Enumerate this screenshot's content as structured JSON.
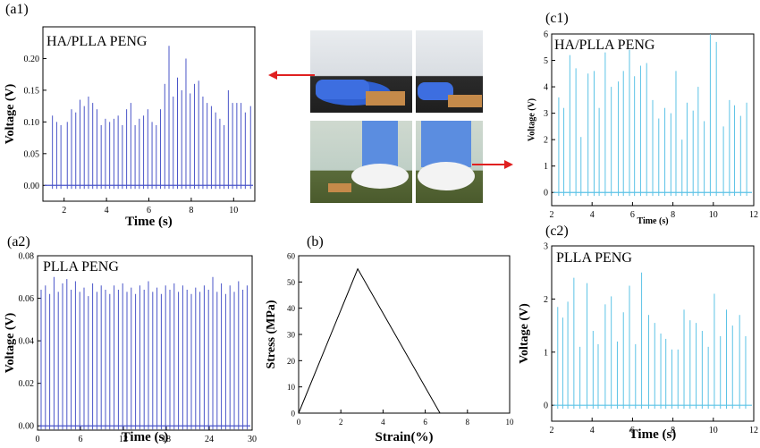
{
  "panels": {
    "a1": {
      "label": "(a1)",
      "annotation": "HA/PLLA PENG"
    },
    "a2": {
      "label": "(a2)",
      "annotation": "PLLA PENG"
    },
    "b": {
      "label": "(b)"
    },
    "c1": {
      "label": "(c1)",
      "annotation": "HA/PLLA PENG"
    },
    "c2": {
      "label": "(c2)",
      "annotation": "PLLA PENG"
    }
  },
  "colors": {
    "signal_dark": "#4a55c8",
    "signal_light": "#5cc3e6",
    "arrow": "#e02020",
    "line": "#000000"
  },
  "chart_data": [
    {
      "id": "a1",
      "type": "line",
      "xlabel": "Time (s)",
      "ylabel": "Voltage (V)",
      "xlim": [
        1,
        11
      ],
      "ylim": [
        -0.025,
        0.25
      ],
      "xticks": [
        2,
        4,
        6,
        8,
        10
      ],
      "yticks": [
        0.0,
        0.05,
        0.1,
        0.15,
        0.2
      ],
      "ytick_labels": [
        "0.00",
        "0.05",
        "0.10",
        "0.15",
        "0.20"
      ],
      "color": "#4a55c8",
      "series": [
        {
          "x": [
            1.45,
            1.65,
            1.85,
            2.15,
            2.35,
            2.55,
            2.75,
            2.95,
            3.15,
            3.35,
            3.55,
            3.75,
            3.95,
            4.15,
            4.35,
            4.55,
            4.75,
            4.95,
            5.15,
            5.35,
            5.55,
            5.75,
            5.95,
            6.15,
            6.35,
            6.55,
            6.75,
            6.95,
            7.15,
            7.35,
            7.55,
            7.75,
            7.95,
            8.15,
            8.35,
            8.55,
            8.75,
            8.95,
            9.15,
            9.35,
            9.55,
            9.75,
            9.95,
            10.15,
            10.35,
            10.55,
            10.8
          ],
          "y": [
            0.11,
            0.1,
            0.095,
            0.1,
            0.12,
            0.115,
            0.135,
            0.125,
            0.14,
            0.13,
            0.12,
            0.095,
            0.105,
            0.1,
            0.105,
            0.11,
            0.095,
            0.12,
            0.13,
            0.095,
            0.105,
            0.11,
            0.12,
            0.1,
            0.095,
            0.12,
            0.16,
            0.22,
            0.14,
            0.17,
            0.15,
            0.2,
            0.145,
            0.16,
            0.165,
            0.14,
            0.13,
            0.125,
            0.115,
            0.105,
            0.095,
            0.15,
            0.13,
            0.13,
            0.13,
            0.115,
            0.125
          ]
        }
      ]
    },
    {
      "id": "a2",
      "type": "line",
      "xlabel": "Time (s)",
      "ylabel": "Voltage (V)",
      "xlim": [
        0,
        30
      ],
      "ylim": [
        -0.002,
        0.08
      ],
      "xticks": [
        0,
        6,
        12,
        18,
        24,
        30
      ],
      "yticks": [
        0.0,
        0.02,
        0.04,
        0.06,
        0.08
      ],
      "ytick_labels": [
        "0.00",
        "0.02",
        "0.04",
        "0.06",
        "0.08"
      ],
      "color": "#4a55c8",
      "series": [
        {
          "x": [
            0.5,
            1.1,
            1.7,
            2.3,
            2.9,
            3.5,
            4.1,
            4.7,
            5.3,
            5.9,
            6.5,
            7.1,
            7.7,
            8.3,
            8.9,
            9.5,
            10.1,
            10.7,
            11.3,
            11.9,
            12.5,
            13.1,
            13.7,
            14.3,
            14.9,
            15.5,
            16.1,
            16.7,
            17.3,
            17.9,
            18.5,
            19.1,
            19.7,
            20.3,
            20.9,
            21.5,
            22.1,
            22.7,
            23.3,
            23.9,
            24.5,
            25.1,
            25.7,
            26.3,
            26.9,
            27.5,
            28.1,
            28.7,
            29.3
          ],
          "y": [
            0.064,
            0.066,
            0.062,
            0.07,
            0.063,
            0.067,
            0.069,
            0.064,
            0.068,
            0.063,
            0.065,
            0.061,
            0.067,
            0.063,
            0.066,
            0.064,
            0.062,
            0.066,
            0.064,
            0.067,
            0.063,
            0.065,
            0.062,
            0.066,
            0.064,
            0.068,
            0.063,
            0.065,
            0.062,
            0.066,
            0.064,
            0.067,
            0.063,
            0.066,
            0.064,
            0.062,
            0.065,
            0.063,
            0.066,
            0.064,
            0.07,
            0.063,
            0.067,
            0.062,
            0.066,
            0.063,
            0.068,
            0.064,
            0.066
          ]
        }
      ]
    },
    {
      "id": "b",
      "type": "line",
      "xlabel": "Strain(%)",
      "ylabel": "Stress (MPa)",
      "xlim": [
        0,
        10
      ],
      "ylim": [
        0,
        60
      ],
      "xticks": [
        0,
        2,
        4,
        6,
        8,
        10
      ],
      "yticks": [
        0,
        10,
        20,
        30,
        40,
        50,
        60
      ],
      "color": "#000000",
      "series": [
        {
          "x": [
            0,
            2.8,
            6.7
          ],
          "y": [
            0,
            55,
            0
          ]
        }
      ]
    },
    {
      "id": "c1",
      "type": "line",
      "xlabel": "Time (s)",
      "ylabel": "Voltage (V)",
      "xlim": [
        2,
        12
      ],
      "ylim": [
        -0.5,
        6
      ],
      "xticks": [
        2,
        4,
        6,
        8,
        10,
        12
      ],
      "yticks": [
        0,
        1,
        2,
        3,
        4,
        5,
        6
      ],
      "color": "#5cc3e6",
      "series": [
        {
          "x": [
            2.35,
            2.6,
            2.9,
            3.2,
            3.45,
            3.8,
            4.1,
            4.35,
            4.65,
            4.95,
            5.3,
            5.55,
            5.85,
            6.1,
            6.4,
            6.7,
            7.0,
            7.3,
            7.6,
            7.9,
            8.15,
            8.45,
            8.7,
            9.0,
            9.25,
            9.55,
            9.85,
            10.15,
            10.5,
            10.8,
            11.05,
            11.35,
            11.65
          ],
          "y": [
            3.6,
            3.2,
            5.2,
            4.7,
            2.1,
            4.5,
            4.6,
            3.2,
            5.3,
            4.0,
            4.2,
            4.6,
            5.4,
            4.4,
            4.8,
            4.9,
            3.5,
            2.8,
            3.2,
            3.0,
            4.6,
            2.0,
            3.4,
            3.1,
            4.0,
            2.7,
            6.0,
            5.7,
            2.5,
            3.5,
            3.3,
            2.9,
            3.4
          ]
        }
      ]
    },
    {
      "id": "c2",
      "type": "line",
      "xlabel": "Time (s)",
      "ylabel": "Voltage (V)",
      "xlim": [
        2,
        12
      ],
      "ylim": [
        -0.3,
        3
      ],
      "xticks": [
        2,
        4,
        6,
        8,
        10,
        12
      ],
      "yticks": [
        0,
        1,
        2,
        3
      ],
      "color": "#5cc3e6",
      "series": [
        {
          "x": [
            2.3,
            2.55,
            2.8,
            3.1,
            3.4,
            3.75,
            4.05,
            4.3,
            4.65,
            4.95,
            5.25,
            5.55,
            5.85,
            6.15,
            6.45,
            6.8,
            7.1,
            7.4,
            7.65,
            7.95,
            8.25,
            8.55,
            8.85,
            9.15,
            9.45,
            9.75,
            10.05,
            10.35,
            10.65,
            10.95,
            11.3,
            11.6
          ],
          "y": [
            1.85,
            1.65,
            1.95,
            2.4,
            1.1,
            2.3,
            1.4,
            1.15,
            1.9,
            2.05,
            1.2,
            1.75,
            2.25,
            1.15,
            2.5,
            1.7,
            1.55,
            1.35,
            1.25,
            1.05,
            1.05,
            1.8,
            1.6,
            1.55,
            1.4,
            1.1,
            2.1,
            1.3,
            1.8,
            1.5,
            1.7,
            1.3
          ]
        }
      ]
    }
  ]
}
